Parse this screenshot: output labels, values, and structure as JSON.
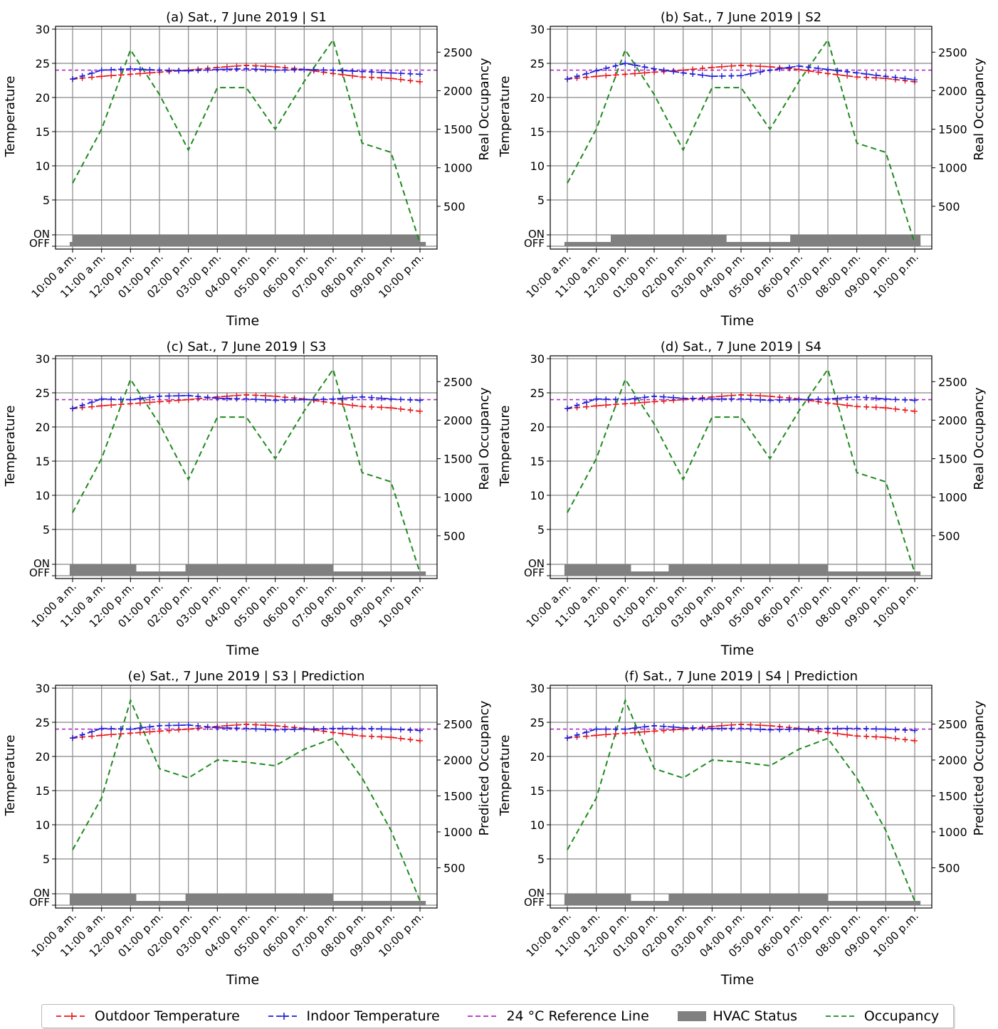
{
  "x_ticks": [
    "10:00 a.m.",
    "11:00 a.m.",
    "12:00 p.m.",
    "01:00 p.m.",
    "02:00 p.m.",
    "03:00 p.m.",
    "04:00 p.m.",
    "05:00 p.m.",
    "06:00 p.m.",
    "07:00 p.m.",
    "08:00 p.m.",
    "09:00 p.m.",
    "10:00 p.m."
  ],
  "temp_ticks": [
    "30",
    "25",
    "20",
    "15",
    "10",
    "5"
  ],
  "hvac_ticks": [
    "ON",
    "OFF"
  ],
  "occupancy_ticks": [
    "500",
    "1000",
    "1500",
    "2000",
    "2500"
  ],
  "xlabel": "Time",
  "ylabel_left": "Temperature",
  "colors": {
    "outdoor": "#e41a1c",
    "indoor": "#1f1fd6",
    "reference": "#b02bc4",
    "hvac": "#808080",
    "occupancy": "#1f8a1f"
  },
  "legend": [
    {
      "label": "Outdoor Temperature",
      "kind": "line-plus",
      "color": "#e41a1c"
    },
    {
      "label": "Indoor Temperature",
      "kind": "line-plus",
      "color": "#1f1fd6"
    },
    {
      "label": "24 °C Reference Line",
      "kind": "dashed",
      "color": "#b02bc4"
    },
    {
      "label": "HVAC Status",
      "kind": "patch",
      "color": "#808080"
    },
    {
      "label": "Occupancy",
      "kind": "dashed",
      "color": "#1f8a1f"
    }
  ],
  "chart_data": [
    {
      "type": "line",
      "title": "(a) Sat., 7 June 2019 | S1",
      "ylabel_right": "Real Occupancy",
      "ylim_temp": [
        -5,
        30
      ],
      "ylim_occupancy": [
        0,
        2780
      ],
      "reference_temp": 24,
      "outdoor_temp": [
        22.7,
        23.1,
        23.4,
        23.7,
        24.0,
        24.4,
        24.7,
        24.5,
        24.1,
        23.5,
        23.0,
        22.8,
        22.3
      ],
      "indoor_temp": [
        22.7,
        24.0,
        24.2,
        24.0,
        23.9,
        24.1,
        24.2,
        24.0,
        24.1,
        24.0,
        23.8,
        23.6,
        23.4
      ],
      "hvac_on": [
        [
          0,
          12
        ]
      ],
      "occupancy": [
        800,
        1500,
        2530,
        1950,
        1230,
        2040,
        2040,
        1500,
        2120,
        2660,
        1320,
        1200,
        20
      ]
    },
    {
      "type": "line",
      "title": "(b) Sat., 7 June 2019 | S2",
      "ylabel_right": "Real Occupancy",
      "ylim_temp": [
        -5,
        30
      ],
      "ylim_occupancy": [
        0,
        2780
      ],
      "reference_temp": 24,
      "outdoor_temp": [
        22.7,
        23.1,
        23.4,
        23.7,
        24.0,
        24.4,
        24.7,
        24.5,
        24.1,
        23.5,
        23.0,
        22.8,
        22.3
      ],
      "indoor_temp": [
        22.7,
        23.9,
        25.0,
        24.2,
        23.6,
        23.1,
        23.2,
        24.0,
        24.6,
        24.1,
        23.6,
        23.1,
        22.6
      ],
      "hvac_on": [
        [
          1.5,
          5.5
        ],
        [
          7.7,
          12.2
        ]
      ],
      "occupancy": [
        800,
        1500,
        2530,
        1950,
        1230,
        2040,
        2040,
        1500,
        2120,
        2660,
        1320,
        1200,
        20
      ]
    },
    {
      "type": "line",
      "title": "(c) Sat., 7 June 2019 | S3",
      "ylabel_right": "Real Occupancy",
      "ylim_temp": [
        -5,
        30
      ],
      "ylim_occupancy": [
        0,
        2780
      ],
      "reference_temp": 24,
      "outdoor_temp": [
        22.7,
        23.1,
        23.4,
        23.7,
        24.0,
        24.4,
        24.7,
        24.5,
        24.1,
        23.5,
        23.0,
        22.8,
        22.3
      ],
      "indoor_temp": [
        22.7,
        24.1,
        24.0,
        24.5,
        24.6,
        24.2,
        24.1,
        23.9,
        24.0,
        24.1,
        24.4,
        24.1,
        23.9
      ],
      "hvac_on": [
        [
          -0.1,
          2.2
        ],
        [
          3.9,
          9.0
        ]
      ],
      "occupancy": [
        800,
        1500,
        2530,
        1950,
        1230,
        2040,
        2040,
        1500,
        2120,
        2660,
        1320,
        1200,
        20
      ]
    },
    {
      "type": "line",
      "title": "(d) Sat., 7 June 2019 | S4",
      "ylabel_right": "Real Occupancy",
      "ylim_temp": [
        -5,
        30
      ],
      "ylim_occupancy": [
        0,
        2780
      ],
      "reference_temp": 24,
      "outdoor_temp": [
        22.7,
        23.1,
        23.4,
        23.7,
        24.0,
        24.4,
        24.7,
        24.5,
        24.1,
        23.5,
        23.0,
        22.8,
        22.3
      ],
      "indoor_temp": [
        22.7,
        24.1,
        24.0,
        24.5,
        24.2,
        24.1,
        24.1,
        23.9,
        24.0,
        24.1,
        24.4,
        24.1,
        23.9
      ],
      "hvac_on": [
        [
          -0.1,
          2.2
        ],
        [
          3.5,
          9.0
        ]
      ],
      "occupancy": [
        800,
        1500,
        2530,
        1950,
        1230,
        2040,
        2040,
        1500,
        2120,
        2660,
        1320,
        1200,
        20
      ]
    },
    {
      "type": "line",
      "title": "(e) Sat., 7 June 2019 | S3 | Prediction",
      "ylabel_right": "Predicted Occupancy",
      "ylim_temp": [
        -5,
        30
      ],
      "ylim_occupancy": [
        0,
        2980
      ],
      "reference_temp": 24,
      "outdoor_temp": [
        22.7,
        23.1,
        23.4,
        23.7,
        24.0,
        24.4,
        24.7,
        24.5,
        24.1,
        23.5,
        23.0,
        22.8,
        22.3
      ],
      "indoor_temp": [
        22.7,
        24.1,
        24.0,
        24.5,
        24.6,
        24.2,
        24.1,
        23.9,
        24.0,
        24.1,
        24.1,
        24.0,
        23.8
      ],
      "hvac_on": [
        [
          -0.1,
          2.2
        ],
        [
          3.9,
          9.0
        ]
      ],
      "occupancy": [
        750,
        1470,
        2830,
        1880,
        1750,
        2000,
        1970,
        1920,
        2150,
        2300,
        1750,
        1020,
        40
      ]
    },
    {
      "type": "line",
      "title": "(f) Sat., 7 June 2019 | S4 | Prediction",
      "ylabel_right": "Predicted Occupancy",
      "ylim_temp": [
        -5,
        30
      ],
      "ylim_occupancy": [
        0,
        2980
      ],
      "reference_temp": 24,
      "outdoor_temp": [
        22.7,
        23.1,
        23.4,
        23.7,
        24.0,
        24.4,
        24.7,
        24.5,
        24.1,
        23.5,
        23.0,
        22.8,
        22.3
      ],
      "indoor_temp": [
        22.7,
        24.0,
        24.0,
        24.5,
        24.2,
        24.1,
        24.1,
        23.9,
        24.0,
        24.1,
        24.1,
        24.0,
        23.8
      ],
      "hvac_on": [
        [
          -0.1,
          2.2
        ],
        [
          3.5,
          9.0
        ]
      ],
      "occupancy": [
        750,
        1470,
        2830,
        1880,
        1750,
        2000,
        1970,
        1920,
        2150,
        2300,
        1750,
        1020,
        40
      ]
    }
  ]
}
